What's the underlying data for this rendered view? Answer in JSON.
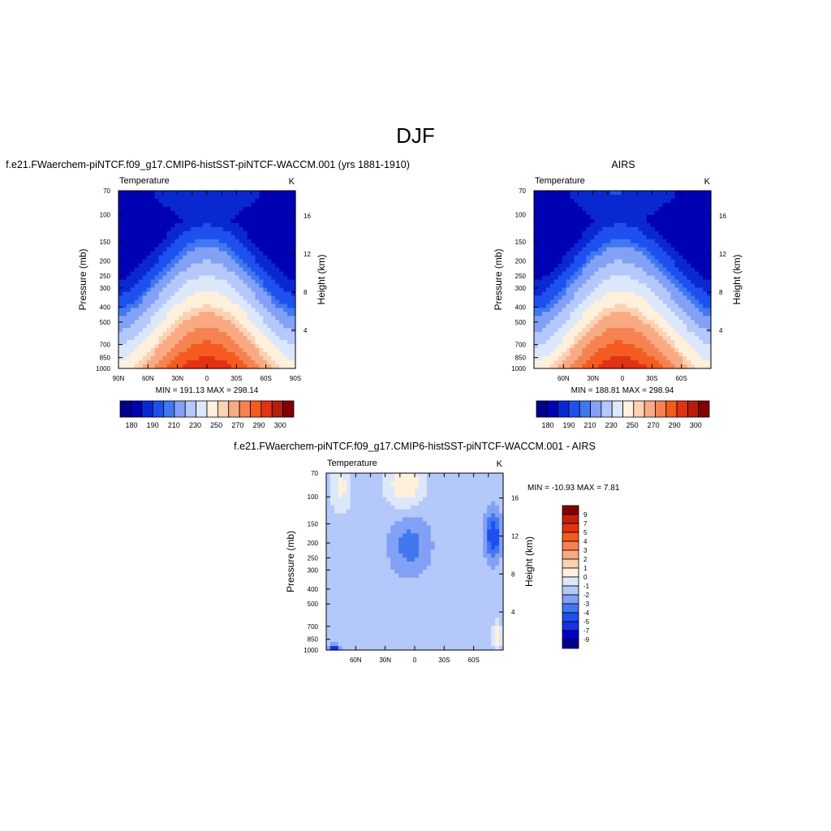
{
  "figure": {
    "title": "DJF"
  },
  "palettes": {
    "abs": [
      "#00008c",
      "#0000b4",
      "#0a28d2",
      "#1e50f0",
      "#4178f0",
      "#82a0f5",
      "#b4c8fa",
      "#dce8fa",
      "#fff0dc",
      "#fcd2b4",
      "#faaa82",
      "#f58250",
      "#f55a1e",
      "#e13214",
      "#b41e0a",
      "#820000"
    ],
    "diff": [
      "#00008c",
      "#0000c8",
      "#1432e6",
      "#1e50f0",
      "#4178f0",
      "#82a0f5",
      "#b4c8fa",
      "#dce8fa",
      "#fff0dc",
      "#fcd2b4",
      "#faaa82",
      "#f58250",
      "#f55a1e",
      "#e13214",
      "#c81e0a",
      "#820000"
    ]
  },
  "chart_data": [
    {
      "type": "heatmap",
      "title": "f.e21.FWaerchem-piNTCF.f09_g17.CMIP6-histSST-piNTCF-WACCM.001 (yrs 1881-1910)",
      "left_label": "Temperature",
      "right_label": "K",
      "ylabel": "Pressure (mb)",
      "ylabel_right": "Height (km)",
      "x_ticks": [
        "90N",
        "60N",
        "30N",
        "0",
        "30S",
        "60S",
        "90S"
      ],
      "x_values": [
        90,
        60,
        30,
        0,
        -30,
        -60,
        -90
      ],
      "xlim": [
        90,
        -90
      ],
      "y_ticks": [
        "70",
        "100",
        "150",
        "200",
        "250",
        "300",
        "400",
        "500",
        "700",
        "850",
        "1000"
      ],
      "y_values": [
        70,
        100,
        150,
        200,
        250,
        300,
        400,
        500,
        700,
        850,
        1000
      ],
      "ylim": [
        1000,
        70
      ],
      "y_scale": "log",
      "right_ticks": [
        "16",
        "12",
        "8",
        "4"
      ],
      "right_values": [
        16,
        12,
        8,
        4
      ],
      "stats_text": "MIN = 191.13  MAX = 298.14",
      "min": 191.13,
      "max": 298.14,
      "field": {
        "base": 0,
        "cold_tropopause": true,
        "palette": "abs",
        "source": "model"
      },
      "colorbar": {
        "orientation": "horizontal",
        "levels": [
          175,
          180,
          185,
          190,
          195,
          200,
          205,
          210,
          215,
          220,
          225,
          230,
          235,
          240,
          245,
          250,
          255,
          260,
          265,
          270,
          275,
          280,
          285,
          290,
          295,
          300,
          305
        ],
        "labels": [
          "180",
          "190",
          "210",
          "230",
          "250",
          "270",
          "290",
          "300"
        ]
      }
    },
    {
      "type": "heatmap",
      "title": "AIRS",
      "left_label": "Temperature",
      "right_label": "K",
      "ylabel": "Pressure (mb)",
      "ylabel_right": "Height (km)",
      "x_ticks": [
        "60N",
        "30N",
        "0",
        "30S",
        "60S"
      ],
      "x_values": [
        60,
        30,
        0,
        -30,
        -60
      ],
      "xlim": [
        90,
        -90
      ],
      "y_ticks": [
        "70",
        "100",
        "150",
        "200",
        "250",
        "300",
        "400",
        "500",
        "700",
        "850",
        "1000"
      ],
      "y_values": [
        70,
        100,
        150,
        200,
        250,
        300,
        400,
        500,
        700,
        850,
        1000
      ],
      "ylim": [
        1000,
        70
      ],
      "y_scale": "log",
      "right_ticks": [
        "16",
        "12",
        "8",
        "4"
      ],
      "right_values": [
        16,
        12,
        8,
        4
      ],
      "stats_text": "MIN = 188.81  MAX = 298.94",
      "min": 188.81,
      "max": 298.94,
      "colorbar": {
        "orientation": "horizontal",
        "levels": [
          175,
          180,
          185,
          190,
          195,
          200,
          205,
          210,
          215,
          220,
          225,
          230,
          235,
          240,
          245,
          250,
          255,
          260,
          265,
          270,
          275,
          280,
          285,
          290,
          295,
          300,
          305
        ],
        "labels": [
          "180",
          "190",
          "210",
          "230",
          "250",
          "270",
          "290",
          "300"
        ]
      }
    },
    {
      "type": "heatmap",
      "title": "f.e21.FWaerchem-piNTCF.f09_g17.CMIP6-histSST-piNTCF-WACCM.001 - AIRS",
      "left_label": "Temperature",
      "right_label": "K",
      "ylabel": "Pressure (mb)",
      "ylabel_right": "Height (km)",
      "x_ticks": [
        "60N",
        "30N",
        "0",
        "30S",
        "60S"
      ],
      "x_values": [
        60,
        30,
        0,
        -30,
        -60
      ],
      "xlim": [
        90,
        -90
      ],
      "y_ticks": [
        "70",
        "100",
        "150",
        "200",
        "250",
        "300",
        "400",
        "500",
        "700",
        "850",
        "1000"
      ],
      "y_values": [
        70,
        100,
        150,
        200,
        250,
        300,
        400,
        500,
        700,
        850,
        1000
      ],
      "ylim": [
        1000,
        70
      ],
      "y_scale": "log",
      "right_ticks": [
        "16",
        "12",
        "8",
        "4"
      ],
      "right_values": [
        16,
        12,
        8,
        4
      ],
      "stats_text": "MIN = -10.93  MAX =   7.81",
      "min": -10.93,
      "max": 7.81,
      "colorbar": {
        "orientation": "vertical",
        "labels": [
          "9",
          "7",
          "5",
          "4",
          "3",
          "2",
          "1",
          "0",
          "-1",
          "-2",
          "-3",
          "-4",
          "-5",
          "-7",
          "-9"
        ]
      }
    }
  ]
}
